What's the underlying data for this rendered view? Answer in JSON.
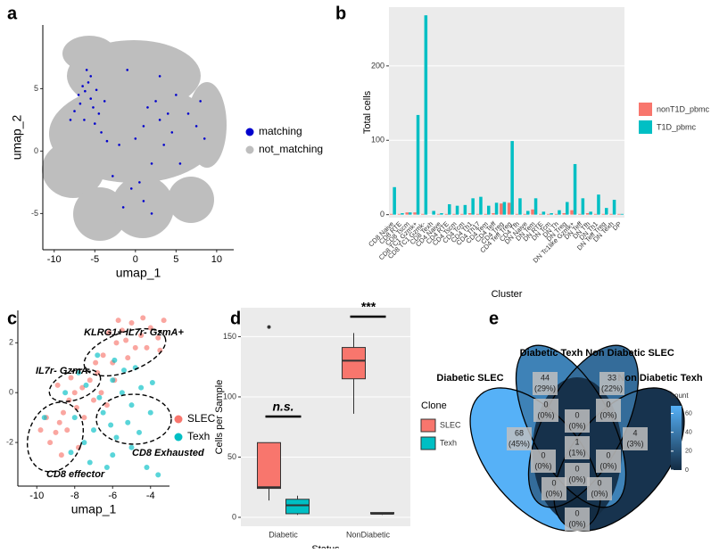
{
  "chart_data": [
    {
      "panel": "a",
      "type": "scatter",
      "xlabel": "umap_1",
      "ylabel": "umap_2",
      "xlim": [
        -11.4,
        12.1
      ],
      "ylim": [
        -7.9,
        10.1
      ],
      "xticks": [
        -10,
        -5,
        0,
        5,
        10
      ],
      "yticks": [
        -5,
        0,
        5
      ],
      "series": [
        {
          "name": "matching",
          "color": "#0000CD",
          "x": [
            -6.5,
            -6.2,
            -5.8,
            -5.5,
            -7,
            -6.8,
            -5.2,
            -4.8,
            -6,
            -5.5,
            -7.5,
            -4.5,
            -3.8,
            -6.3,
            -5,
            -8,
            -4.2,
            -3.5,
            -2,
            1,
            1.5,
            2.5,
            3,
            4,
            4.5,
            5,
            6.5,
            7.5,
            8,
            3.5,
            2,
            0.5,
            -0.5,
            1,
            2,
            -1.5,
            5.5,
            8.5,
            -2.8,
            0,
            3,
            -1
          ],
          "y": [
            5.2,
            4.8,
            5.5,
            4.2,
            4.5,
            3.8,
            3.5,
            4.9,
            6.5,
            6,
            3.2,
            3,
            4,
            2.5,
            2.2,
            2.5,
            1.5,
            0.8,
            0.5,
            2,
            3.5,
            4,
            2.5,
            3,
            1.5,
            4.5,
            3,
            2,
            4,
            0.5,
            -1,
            -2.5,
            -3,
            -4,
            -5,
            -4.5,
            -1,
            1,
            -2,
            1,
            6,
            6.5
          ]
        },
        {
          "name": "not_matching",
          "color": "#BEBEBE"
        }
      ]
    },
    {
      "panel": "b",
      "type": "bar",
      "xlabel": "Cluster",
      "ylabel": "Total cells",
      "ylim": [
        -4,
        279
      ],
      "yticks": [
        0,
        100,
        200
      ],
      "categories": [
        "CD8 Naive",
        "CD8 RTE",
        "CD8 Tscm",
        "CD8 TC1 Gzmk+",
        "CD8 TC1 Gzmk-",
        "CD8 Texh",
        "CD4 Naive",
        "CD4 RTE",
        "CD4 Tscm",
        "CD4 Tcm",
        "CD4 Th1",
        "CD4 Th17",
        "CD4 Tem",
        "CD4 Teff",
        "CD4 Treg",
        "CD4 Teff Treg",
        "CD4 Tfh",
        "DN Naive",
        "DN Tem",
        "DN RTE",
        "DN Tcm",
        "DN Th",
        "DN Treg",
        "DN Tc1like Gzmk+",
        "DN Teff",
        "DN Tfh",
        "DN Th1",
        "DN Teff Treg",
        "DN Texh",
        "DP"
      ],
      "series": [
        {
          "name": "nonT1D_pbmc",
          "color": "#F8766D",
          "values": [
            1,
            1,
            3,
            3,
            1,
            0,
            1,
            1,
            1,
            1,
            2,
            1,
            1,
            2,
            15,
            16,
            1,
            1,
            7,
            1,
            1,
            1,
            2,
            6,
            1,
            2,
            1,
            1,
            1,
            1
          ]
        },
        {
          "name": "T1D_pbmc",
          "color": "#00BFC4",
          "values": [
            37,
            2,
            3,
            134,
            268,
            5,
            2,
            14,
            12,
            13,
            22,
            24,
            12,
            16,
            17,
            99,
            22,
            5,
            22,
            4,
            2,
            6,
            17,
            68,
            22,
            4,
            27,
            9,
            20,
            1
          ]
        }
      ]
    },
    {
      "panel": "c",
      "type": "scatter",
      "xlabel": "umap_1",
      "ylabel": "umap_2",
      "xlim": [
        -11,
        -3
      ],
      "ylim": [
        -3.75,
        3.3
      ],
      "xticks": [
        -10,
        -8,
        -6,
        -4
      ],
      "yticks": [
        -2,
        0,
        2
      ],
      "annotations": [
        "KLRG1+ IL7r- GzmA+",
        "IL7r- GzmA-",
        "CD8 Exhausted",
        "CD8 effector"
      ],
      "series": [
        {
          "name": "SLEC",
          "color": "#F8766D",
          "x": [
            -5.5,
            -5,
            -4.5,
            -4,
            -3.6,
            -4.8,
            -5.8,
            -6.2,
            -6.5,
            -5.2,
            -4.2,
            -3.3,
            -3.5,
            -6,
            -6.8,
            -7.2,
            -7.6,
            -8,
            -8.3,
            -8.6,
            -8.8,
            -9,
            -9.3,
            -8.4,
            -7.9,
            -7.5,
            -8.2,
            -9.5,
            -6.6,
            -7,
            -5.7,
            -4.4,
            -5.3,
            -6.9,
            -8.7,
            -9.8,
            -7.8,
            -6.3,
            -5.9,
            -8.9
          ],
          "y": [
            2.5,
            2.8,
            2.3,
            2.6,
            2.2,
            1.8,
            2,
            2.4,
            1.5,
            1.4,
            1.8,
            2.9,
            1.7,
            1.2,
            0.8,
            0.5,
            0.2,
            0,
            -0.3,
            -0.8,
            -1.2,
            -1.6,
            -2,
            -1.5,
            -0.6,
            -1,
            0.6,
            -1,
            0,
            -0.3,
            2.9,
            3,
            2.1,
            1.2,
            -2.5,
            -1.5,
            -2.2,
            -0.5,
            0.5,
            0.3
          ]
        },
        {
          "name": "Texh",
          "color": "#00BFC4",
          "x": [
            -6,
            -5.5,
            -5,
            -4.5,
            -4,
            -5.2,
            -6.5,
            -7,
            -7.5,
            -6,
            -5,
            -4.2,
            -3.6,
            -8,
            -8.5,
            -7.8,
            -6.8,
            -5.8,
            -4.8,
            -9.6,
            -6.3,
            -7.2,
            -5.4,
            -6.7,
            -4.6,
            -8.2,
            -3.9,
            -7.4,
            -5.9,
            -6.1
          ],
          "y": [
            0.5,
            0,
            -0.5,
            0.2,
            -0.8,
            -1.2,
            -0.8,
            -1.5,
            -2,
            -2.5,
            -2.2,
            -3,
            -3.3,
            -1,
            0,
            0.8,
            1.5,
            -1.8,
            1,
            -1,
            -3,
            -2.8,
            0.9,
            -0.2,
            -1.6,
            -2.4,
            0.4,
            0.3,
            1.3,
            -1.3
          ]
        }
      ]
    },
    {
      "panel": "d",
      "type": "box",
      "xlabel": "Status",
      "ylabel": "Cells per Sample",
      "legend_title": "Clone",
      "ylim": [
        -7.4,
        174
      ],
      "yticks": [
        0,
        50,
        100,
        150
      ],
      "categories": [
        "Diabetic",
        "NonDiabetic"
      ],
      "annotations": [
        "n.s.",
        "***"
      ],
      "series": [
        {
          "name": "SLEC",
          "color": "#F8766D",
          "values": [
            {
              "min": 14,
              "q1": 24,
              "median": 25,
              "q3": 62,
              "max": 62,
              "outliers": [
                158
              ]
            },
            {
              "min": 86,
              "q1": 115,
              "median": 130,
              "q3": 141,
              "max": 153,
              "outliers": []
            }
          ]
        },
        {
          "name": "Texh",
          "color": "#00BFC4",
          "values": [
            {
              "min": 2,
              "q1": 3,
              "median": 10,
              "q3": 15,
              "max": 18,
              "outliers": []
            },
            {
              "min": 2,
              "q1": 3,
              "median": 3,
              "q3": 4,
              "max": 4,
              "outliers": []
            }
          ]
        }
      ]
    },
    {
      "panel": "e",
      "type": "venn",
      "legend_title": "count",
      "set_names": [
        "Diabetic SLEC",
        "Diabetic Texh",
        "Non Diabetic SLEC",
        "Non Diabetic Texh"
      ],
      "counts": [
        68,
        44,
        33,
        4,
        0,
        0,
        0,
        0,
        1,
        0,
        0,
        0,
        0,
        0
      ],
      "percents": [
        45,
        29,
        22,
        3,
        0,
        0,
        0,
        0,
        1,
        0,
        0,
        0,
        0,
        0
      ],
      "percent_labels": [
        "(45%)",
        "(29%)",
        "(22%)",
        "(3%)",
        "(0%)",
        "(0%)",
        "(0%)",
        "(0%)",
        "(1%)",
        "(0%)",
        "(0%)",
        "(0%)",
        "(0%)",
        "(0%)"
      ],
      "clim": [
        0,
        68
      ],
      "colors": [
        "#132B43",
        "#56B1F7"
      ],
      "colorbar_ticks": [
        0,
        20,
        40,
        60
      ]
    }
  ]
}
